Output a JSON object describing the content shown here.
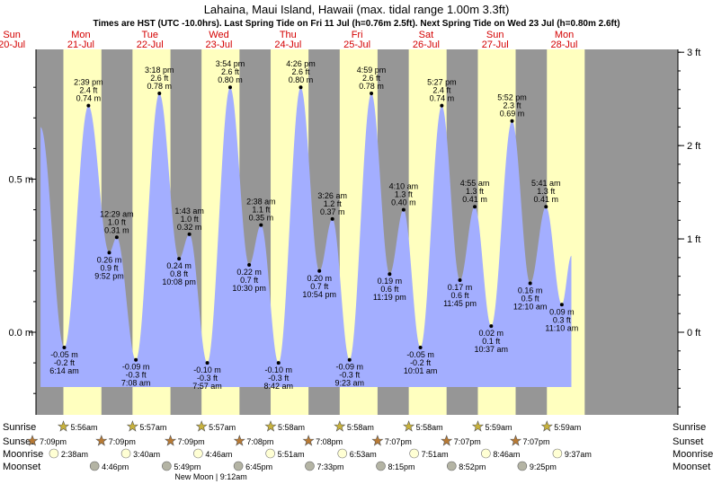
{
  "chart_data": {
    "type": "area",
    "title": "Lahaina, Maui Island, Hawaii (max. tidal range 1.00m 3.3ft)",
    "subtitle": "Times are HST (UTC -10.0hrs). Last Spring Tide on Fri 11 Jul (h=0.76m 2.5ft). Next Spring Tide on Wed 23 Jul (h=0.80m 2.6ft)",
    "ylim_m": [
      -0.26,
      0.9
    ],
    "left_axis": [
      {
        "v": 0.5,
        "label": "0.5 m"
      },
      {
        "v": 0.0,
        "label": "0.0 m"
      }
    ],
    "right_axis": [
      {
        "v": 3,
        "label": "3 ft"
      },
      {
        "v": 2,
        "label": "2 ft"
      },
      {
        "v": 1,
        "label": "1 ft"
      },
      {
        "v": 0,
        "label": "0 ft"
      }
    ],
    "days": [
      {
        "dow": "Sun",
        "date": "20-Jul"
      },
      {
        "dow": "Mon",
        "date": "21-Jul"
      },
      {
        "dow": "Tue",
        "date": "22-Jul"
      },
      {
        "dow": "Wed",
        "date": "23-Jul"
      },
      {
        "dow": "Thu",
        "date": "24-Jul"
      },
      {
        "dow": "Fri",
        "date": "25-Jul"
      },
      {
        "dow": "Sat",
        "date": "26-Jul"
      },
      {
        "dow": "Sun",
        "date": "27-Jul"
      },
      {
        "dow": "Mon",
        "date": "28-Jul"
      }
    ],
    "daylight": [
      {
        "day": 0,
        "sunrise": 5.93,
        "sunset": 19.15
      },
      {
        "day": 1,
        "sunrise": 5.93,
        "sunset": 19.15
      },
      {
        "day": 2,
        "sunrise": 5.95,
        "sunset": 19.15
      },
      {
        "day": 3,
        "sunrise": 5.95,
        "sunset": 19.13
      },
      {
        "day": 4,
        "sunrise": 5.97,
        "sunset": 19.13
      },
      {
        "day": 5,
        "sunrise": 5.97,
        "sunset": 19.12
      },
      {
        "day": 6,
        "sunrise": 5.97,
        "sunset": 19.12
      },
      {
        "day": 7,
        "sunrise": 5.98,
        "sunset": 19.12
      },
      {
        "day": 8,
        "sunrise": 5.98,
        "sunset": 19.12
      }
    ],
    "tide_start_m": 0.67,
    "tide_end_m": 0.25,
    "tides": [
      {
        "t": 30.23,
        "h": -0.05,
        "time": "6:14 am",
        "ft": "-0.2 ft",
        "m": "-0.05 m",
        "type": "low"
      },
      {
        "t": 38.65,
        "h": 0.74,
        "time": "2:39 pm",
        "ft": "2.4 ft",
        "m": "0.74 m",
        "type": "high"
      },
      {
        "t": 45.87,
        "h": 0.26,
        "time": "9:52 pm",
        "ft": "0.9 ft",
        "m": "0.26 m",
        "type": "low"
      },
      {
        "t": 48.48,
        "h": 0.31,
        "time": "12:29 am",
        "ft": "1.0 ft",
        "m": "0.31 m",
        "type": "high"
      },
      {
        "t": 55.13,
        "h": -0.09,
        "time": "7:08 am",
        "ft": "-0.3 ft",
        "m": "-0.09 m",
        "type": "low"
      },
      {
        "t": 63.3,
        "h": 0.78,
        "time": "3:18 pm",
        "ft": "2.6 ft",
        "m": "0.78 m",
        "type": "high"
      },
      {
        "t": 70.13,
        "h": 0.24,
        "time": "10:08 pm",
        "ft": "0.8 ft",
        "m": "0.24 m",
        "type": "low"
      },
      {
        "t": 73.72,
        "h": 0.32,
        "time": "1:43 am",
        "ft": "1.0 ft",
        "m": "0.32 m",
        "type": "high"
      },
      {
        "t": 79.95,
        "h": -0.1,
        "time": "7:57 am",
        "ft": "-0.3 ft",
        "m": "-0.10 m",
        "type": "low"
      },
      {
        "t": 87.9,
        "h": 0.8,
        "time": "3:54 pm",
        "ft": "2.6 ft",
        "m": "0.80 m",
        "type": "high"
      },
      {
        "t": 94.5,
        "h": 0.22,
        "time": "10:30 pm",
        "ft": "0.7 ft",
        "m": "0.22 m",
        "type": "low"
      },
      {
        "t": 98.63,
        "h": 0.35,
        "time": "2:38 am",
        "ft": "1.1 ft",
        "m": "0.35 m",
        "type": "high"
      },
      {
        "t": 104.7,
        "h": -0.1,
        "time": "8:42 am",
        "ft": "-0.3 ft",
        "m": "-0.10 m",
        "type": "low"
      },
      {
        "t": 112.43,
        "h": 0.8,
        "time": "4:26 pm",
        "ft": "2.6 ft",
        "m": "0.80 m",
        "type": "high"
      },
      {
        "t": 118.9,
        "h": 0.2,
        "time": "10:54 pm",
        "ft": "0.7 ft",
        "m": "0.20 m",
        "type": "low"
      },
      {
        "t": 123.43,
        "h": 0.37,
        "time": "3:26 am",
        "ft": "1.2 ft",
        "m": "0.37 m",
        "type": "high"
      },
      {
        "t": 129.38,
        "h": -0.09,
        "time": "9:23 am",
        "ft": "-0.3 ft",
        "m": "-0.09 m",
        "type": "low"
      },
      {
        "t": 136.98,
        "h": 0.78,
        "time": "4:59 pm",
        "ft": "2.6 ft",
        "m": "0.78 m",
        "type": "high"
      },
      {
        "t": 143.32,
        "h": 0.19,
        "time": "11:19 pm",
        "ft": "0.6 ft",
        "m": "0.19 m",
        "type": "low"
      },
      {
        "t": 148.17,
        "h": 0.4,
        "time": "4:10 am",
        "ft": "1.3 ft",
        "m": "0.40 m",
        "type": "high"
      },
      {
        "t": 154.02,
        "h": -0.05,
        "time": "10:01 am",
        "ft": "-0.2 ft",
        "m": "-0.05 m",
        "type": "low"
      },
      {
        "t": 161.45,
        "h": 0.74,
        "time": "5:27 pm",
        "ft": "2.4 ft",
        "m": "0.74 m",
        "type": "high"
      },
      {
        "t": 167.75,
        "h": 0.17,
        "time": "11:45 pm",
        "ft": "0.6 ft",
        "m": "0.17 m",
        "type": "low"
      },
      {
        "t": 172.92,
        "h": 0.41,
        "time": "4:55 am",
        "ft": "1.3 ft",
        "m": "0.41 m",
        "type": "high"
      },
      {
        "t": 178.62,
        "h": 0.02,
        "time": "10:37 am",
        "ft": "0.1 ft",
        "m": "0.02 m",
        "type": "low"
      },
      {
        "t": 185.87,
        "h": 0.69,
        "time": "5:52 pm",
        "ft": "2.3 ft",
        "m": "0.69 m",
        "type": "high"
      },
      {
        "t": 192.17,
        "h": 0.16,
        "time": "12:10 am",
        "ft": "0.5 ft",
        "m": "0.16 m",
        "type": "low"
      },
      {
        "t": 197.68,
        "h": 0.41,
        "time": "5:41 am",
        "ft": "1.3 ft",
        "m": "0.41 m",
        "type": "high"
      },
      {
        "t": 203.17,
        "h": 0.09,
        "time": "11:10 am",
        "ft": "0.3 ft",
        "m": "0.09 m",
        "type": "low"
      }
    ],
    "rows": {
      "labels": [
        "Sunrise",
        "Sunset",
        "Moonrise",
        "Moonset"
      ],
      "sunrise": [
        {
          "t": 29.93,
          "text": "5:56am"
        },
        {
          "t": 53.95,
          "text": "5:57am"
        },
        {
          "t": 77.95,
          "text": "5:57am"
        },
        {
          "t": 101.97,
          "text": "5:58am"
        },
        {
          "t": 125.97,
          "text": "5:58am"
        },
        {
          "t": 149.97,
          "text": "5:58am"
        },
        {
          "t": 173.98,
          "text": "5:59am"
        },
        {
          "t": 197.98,
          "text": "5:59am"
        }
      ],
      "sunset": [
        {
          "t": 19.15,
          "text": "7:09pm"
        },
        {
          "t": 43.15,
          "text": "7:09pm"
        },
        {
          "t": 67.15,
          "text": "7:09pm"
        },
        {
          "t": 91.13,
          "text": "7:08pm"
        },
        {
          "t": 115.13,
          "text": "7:08pm"
        },
        {
          "t": 139.12,
          "text": "7:07pm"
        },
        {
          "t": 163.12,
          "text": "7:07pm"
        },
        {
          "t": 187.12,
          "text": "7:07pm"
        }
      ],
      "moonrise": [
        {
          "t": 26.63,
          "text": "2:38am"
        },
        {
          "t": 51.67,
          "text": "3:40am"
        },
        {
          "t": 76.77,
          "text": "4:46am"
        },
        {
          "t": 101.85,
          "text": "5:51am"
        },
        {
          "t": 126.88,
          "text": "6:53am"
        },
        {
          "t": 151.85,
          "text": "7:51am"
        },
        {
          "t": 176.77,
          "text": "8:46am"
        },
        {
          "t": 201.62,
          "text": "9:37am"
        }
      ],
      "moonset": [
        {
          "t": 40.77,
          "text": "4:46pm"
        },
        {
          "t": 65.82,
          "text": "5:49pm"
        },
        {
          "t": 90.75,
          "text": "6:45pm"
        },
        {
          "t": 115.55,
          "text": "7:33pm"
        },
        {
          "t": 140.25,
          "text": "8:15pm"
        },
        {
          "t": 164.87,
          "text": "8:52pm"
        },
        {
          "t": 189.42,
          "text": "9:25pm"
        }
      ]
    },
    "moon_phase": {
      "text": "New Moon | 9:12am",
      "t": 81.2
    },
    "colors": {
      "day": "#ffffbf",
      "night": "#969696",
      "tide": "#a3aeff",
      "day_label": "#d40000",
      "sun": "#c8b23c",
      "sunset_star": "#b87a34",
      "moonrise": "#ffffd4",
      "moonset": "#b4b4a4"
    }
  }
}
